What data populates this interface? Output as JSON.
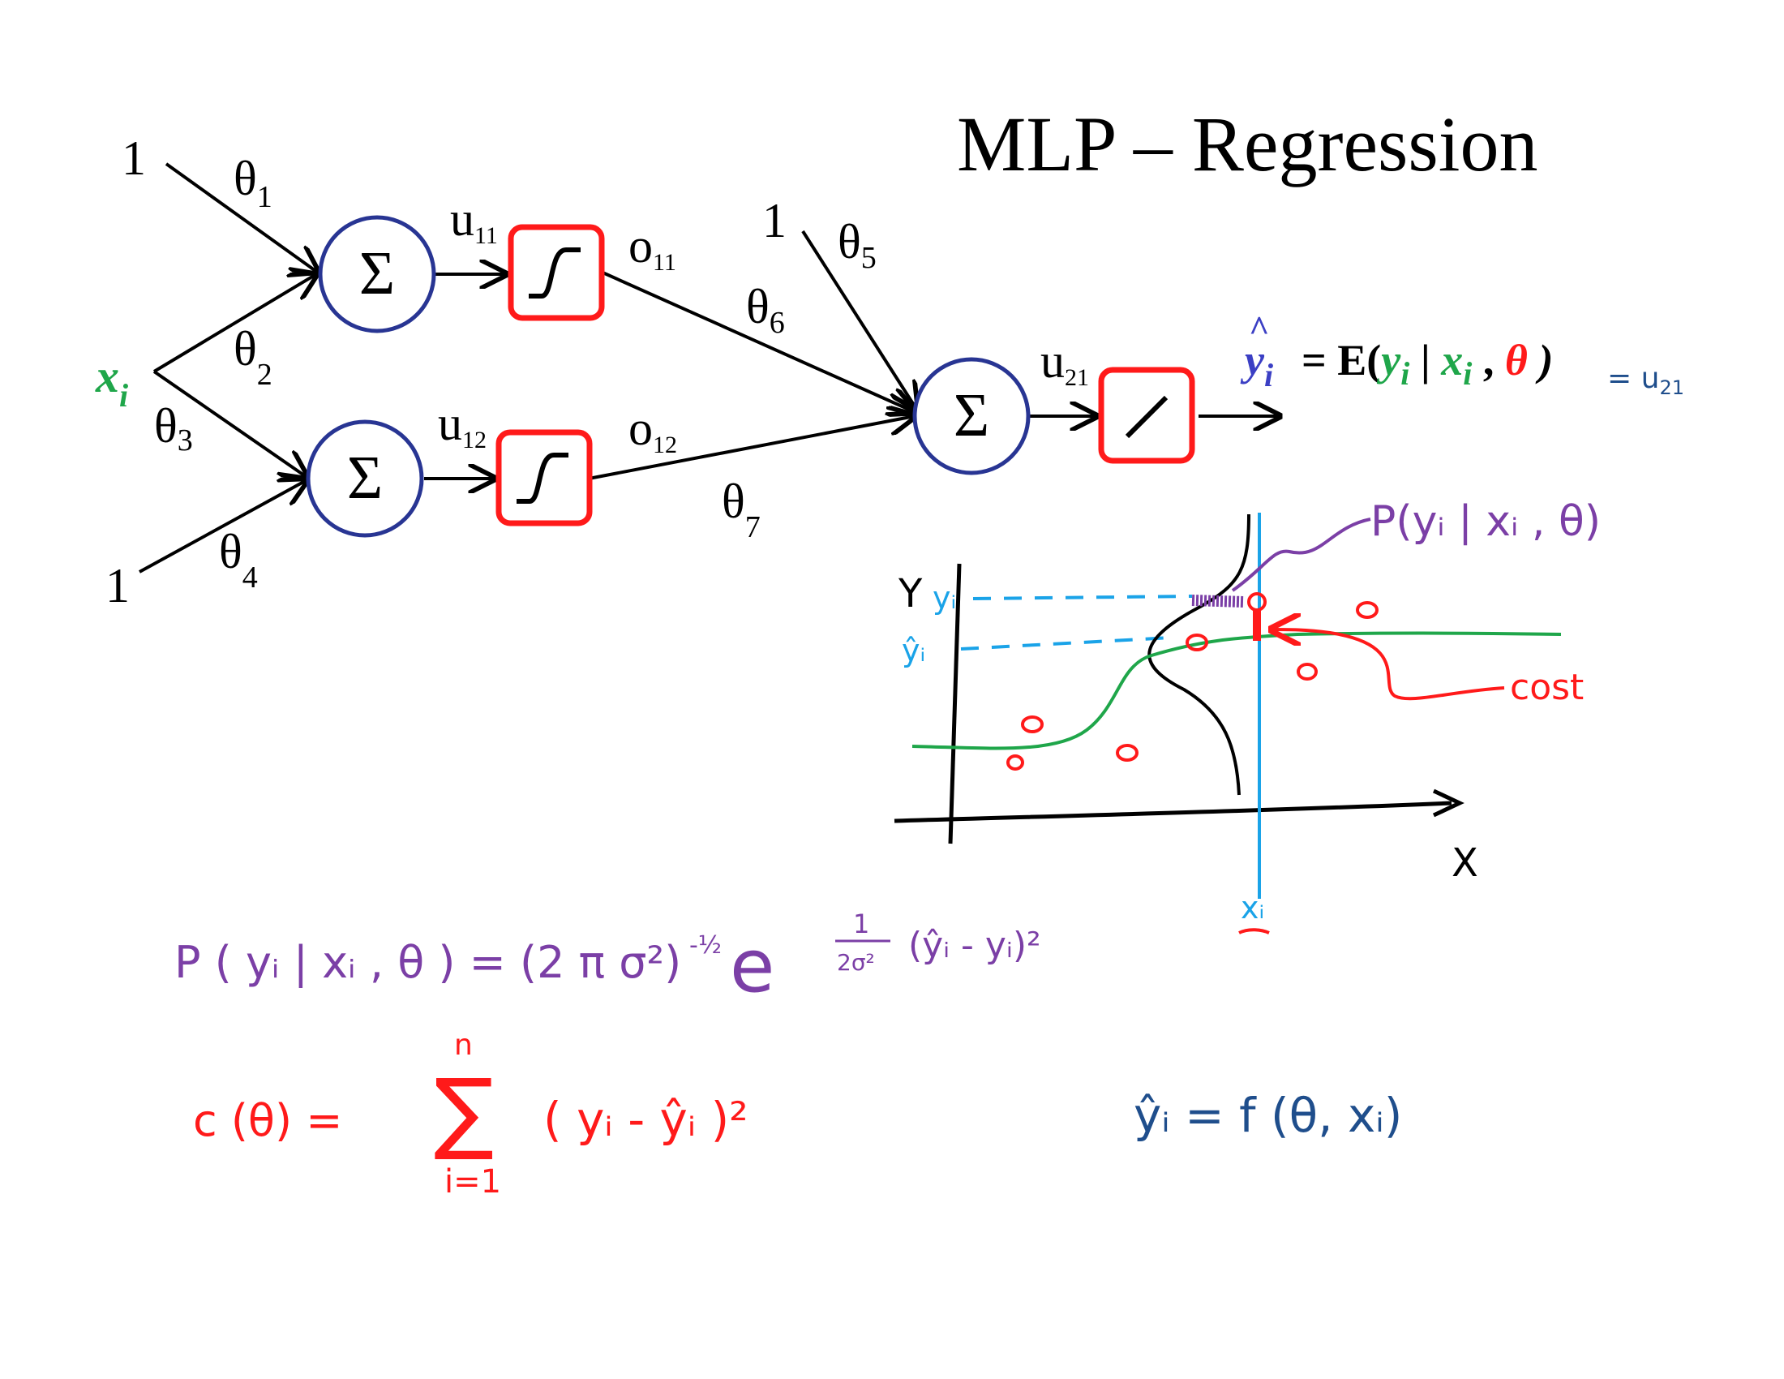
{
  "title": "MLP – Regression",
  "network": {
    "bias_top": "1",
    "bias_bottom": "1",
    "bias_output": "1",
    "input": "x",
    "input_sub": "i",
    "sum_symbol": "Σ",
    "weights": [
      "θ",
      "θ",
      "θ",
      "θ",
      "θ",
      "θ",
      "θ"
    ],
    "weight_subs": [
      "1",
      "2",
      "3",
      "4",
      "5",
      "6",
      "7"
    ],
    "u11": "u",
    "u11_sub": "11",
    "u12": "u",
    "u12_sub": "12",
    "o11": "o",
    "o11_sub": "11",
    "o12": "o",
    "o12_sub": "12",
    "u21": "u",
    "u21_sub": "21"
  },
  "equation": {
    "yhat": "y",
    "yhat_sub": "i",
    "hat": "^",
    "eq_E": "= E(",
    "y": "y",
    "y_sub": "i",
    "bar": " | ",
    "x": "x",
    "x_sub": "i",
    "comma": " , ",
    "theta": "θ",
    "close": " )",
    "handwritten_tail": "= u",
    "handwritten_tail_sub": "21"
  },
  "sketch": {
    "density_label": "P(yᵢ | xᵢ , θ)",
    "y_axis": "Y",
    "x_axis": "X",
    "yi_label": "yᵢ",
    "yhat_label": "ŷᵢ",
    "xi_label": "xᵢ",
    "cost_label": "cost",
    "data_point": "o"
  },
  "formulas": {
    "density": "P ( yᵢ | xᵢ , θ )  = (2 π σ²)",
    "density_exp": "-½",
    "density_e": "e",
    "density_e_exp_frac_top": "1",
    "density_e_exp_frac_bot": "2σ²",
    "density_e_exp_term": "(ŷᵢ - yᵢ)²",
    "cost_lhs": "c (θ)  =",
    "sum_symbol": "∑",
    "sum_top": "n",
    "sum_bottom": "i=1",
    "cost_term": "( yᵢ  - ŷᵢ )²",
    "f_def": "ŷᵢ  =  f (θ, xᵢ)"
  },
  "colors": {
    "neuron_border": "#283593",
    "activation_border": "#ff1a1a",
    "input_green": "#1fa64a",
    "theta_red": "#ff1a1a",
    "eq_blue": "#3b3fc4",
    "ink_blue": "#1f4e8c",
    "purple": "#7b3fa6",
    "cyan": "#1aa3e8",
    "red_ink": "#ff1a1a",
    "green_curve": "#1fa64a"
  }
}
